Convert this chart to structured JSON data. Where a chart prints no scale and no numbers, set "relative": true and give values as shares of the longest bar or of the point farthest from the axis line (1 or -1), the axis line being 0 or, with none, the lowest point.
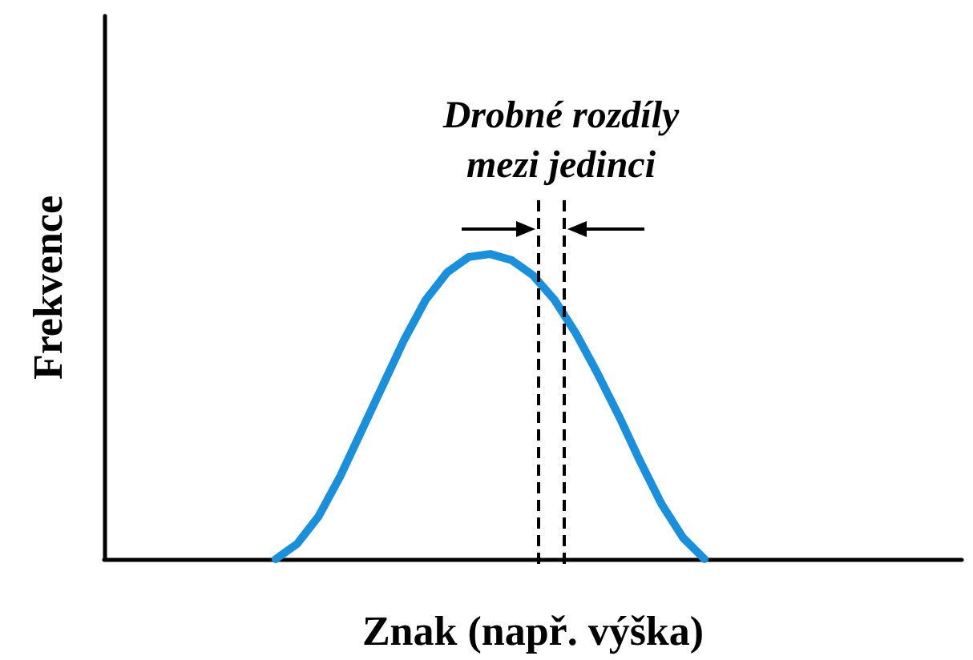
{
  "chart_data": {
    "type": "line",
    "relative": true,
    "xlabel": "Znak (např. výška)",
    "ylabel": "Frekvence",
    "annotations": [
      "Drobné rozdíly\nmezi jedinci"
    ],
    "categories": [
      null,
      null,
      null,
      null,
      null,
      null,
      null,
      null,
      null,
      null,
      null,
      null,
      null,
      null,
      null,
      null,
      null,
      null,
      null,
      null,
      null,
      null,
      null,
      null,
      null,
      null,
      null,
      null,
      null,
      null,
      null,
      null,
      null,
      null,
      null,
      null,
      null,
      null,
      null,
      null,
      null
    ],
    "series": [
      {
        "color": "#1a8fdc",
        "values": [
          null,
          null,
          null,
          null,
          null,
          null,
          null,
          null,
          0,
          0.05,
          0.14,
          0.27,
          0.42,
          0.57,
          0.72,
          0.85,
          0.94,
          0.99,
          1,
          0.98,
          0.93,
          0.85,
          0.74,
          0.61,
          0.47,
          0.32,
          0.18,
          0.07,
          0,
          null,
          null,
          null,
          null,
          null,
          null,
          null,
          null,
          null,
          null,
          null,
          null
        ]
      }
    ],
    "grid": false,
    "marker": "none",
    "line_style": "solid"
  }
}
